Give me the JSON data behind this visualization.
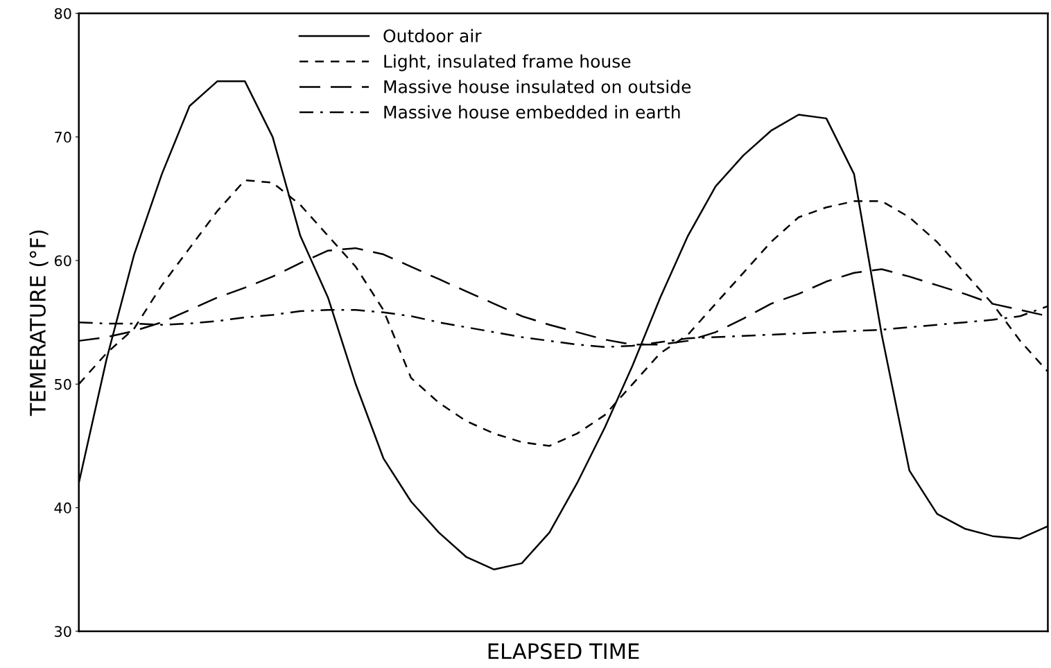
{
  "chart_data": {
    "type": "line",
    "xlabel": "ELAPSED TIME",
    "ylabel": "TEMERATURE (°F)",
    "categories": [
      null,
      null,
      null,
      null,
      null,
      null,
      null,
      null,
      null,
      null,
      null,
      null,
      null,
      null,
      null,
      null,
      null,
      null,
      null,
      null,
      null,
      null,
      null,
      null,
      null,
      null,
      null,
      null,
      null,
      null,
      null,
      null,
      null,
      null,
      null,
      null
    ],
    "series": [
      {
        "name": "Outdoor air",
        "color": "#000000",
        "line_style": "solid",
        "values": [
          42,
          52,
          60.5,
          67,
          72.5,
          74.5,
          74.5,
          70,
          62,
          57,
          50,
          44,
          40.5,
          38,
          36,
          35,
          35.5,
          38,
          42,
          46.5,
          51.5,
          57,
          62,
          66,
          68.5,
          70.5,
          71.8,
          71.5,
          67,
          54,
          43,
          39.5,
          38.3,
          37.7,
          37.5,
          38.5
        ]
      },
      {
        "name": "Light, insulated frame house",
        "color": "#000000",
        "line_style": "dashed",
        "values": [
          50,
          52.5,
          54.5,
          58,
          61,
          64,
          66.5,
          66.3,
          64.5,
          62,
          59.5,
          56,
          50.5,
          48.5,
          47,
          46,
          45.3,
          45,
          46,
          47.5,
          50,
          52.5,
          54,
          56.5,
          59,
          61.5,
          63.5,
          64.3,
          64.8,
          64.8,
          63.5,
          61.5,
          59,
          56.5,
          53.5,
          51
        ]
      },
      {
        "name": "Massive house insulated on outside",
        "color": "#000000",
        "line_style": "longdash",
        "values": [
          53.5,
          53.8,
          54.3,
          55,
          56,
          57,
          57.8,
          58.7,
          59.8,
          60.8,
          61,
          60.5,
          59.5,
          58.5,
          57.5,
          56.5,
          55.5,
          54.8,
          54.2,
          53.6,
          53.2,
          53.2,
          53.5,
          54.2,
          55.3,
          56.5,
          57.3,
          58.3,
          59,
          59.3,
          58.7,
          58,
          57.3,
          56.5,
          56,
          55.5
        ]
      },
      {
        "name": "Massive house embedded in earth",
        "color": "#000000",
        "line_style": "dashdot",
        "values": [
          55,
          54.9,
          54.9,
          54.8,
          54.9,
          55.1,
          55.4,
          55.6,
          55.9,
          56,
          56,
          55.8,
          55.5,
          55,
          54.6,
          54.2,
          53.8,
          53.5,
          53.2,
          53,
          53.1,
          53.4,
          53.7,
          53.8,
          53.9,
          54,
          54.1,
          54.2,
          54.3,
          54.4,
          54.6,
          54.8,
          55,
          55.2,
          55.5,
          56.3
        ]
      }
    ],
    "ylim": [
      30,
      80
    ],
    "yticks": [
      30,
      40,
      50,
      60,
      70,
      80
    ],
    "tick_labels": "y",
    "legend": "top"
  }
}
